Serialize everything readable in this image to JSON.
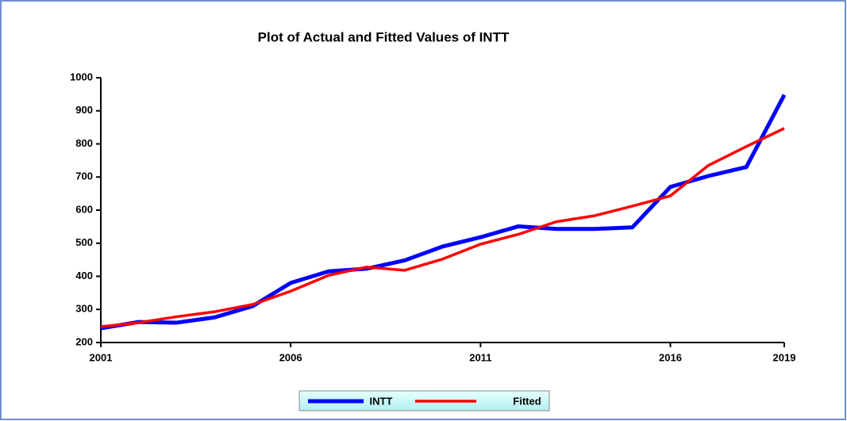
{
  "chart_data": {
    "type": "line",
    "title": "Plot of Actual and Fitted Values of INTT",
    "x": [
      2001,
      2002,
      2003,
      2004,
      2005,
      2006,
      2007,
      2008,
      2009,
      2010,
      2011,
      2012,
      2013,
      2014,
      2015,
      2016,
      2017,
      2018,
      2019
    ],
    "series": [
      {
        "name": "INTT",
        "color": "#0000ff",
        "values": [
          243,
          262,
          260,
          276,
          310,
          380,
          415,
          423,
          448,
          490,
          518,
          551,
          543,
          543,
          548,
          670,
          703,
          730,
          948
        ]
      },
      {
        "name": "Fitted",
        "color": "#ff0000",
        "values": [
          248,
          260,
          278,
          293,
          315,
          355,
          403,
          428,
          418,
          452,
          497,
          527,
          565,
          583,
          612,
          643,
          735,
          792,
          847
        ]
      }
    ],
    "xlim": [
      2001,
      2019
    ],
    "xticks": [
      2001,
      2006,
      2011,
      2016,
      2019
    ],
    "ylim": [
      200,
      1000
    ],
    "yticks": [
      200,
      300,
      400,
      500,
      600,
      700,
      800,
      900,
      1000
    ],
    "legend": "bottom"
  }
}
